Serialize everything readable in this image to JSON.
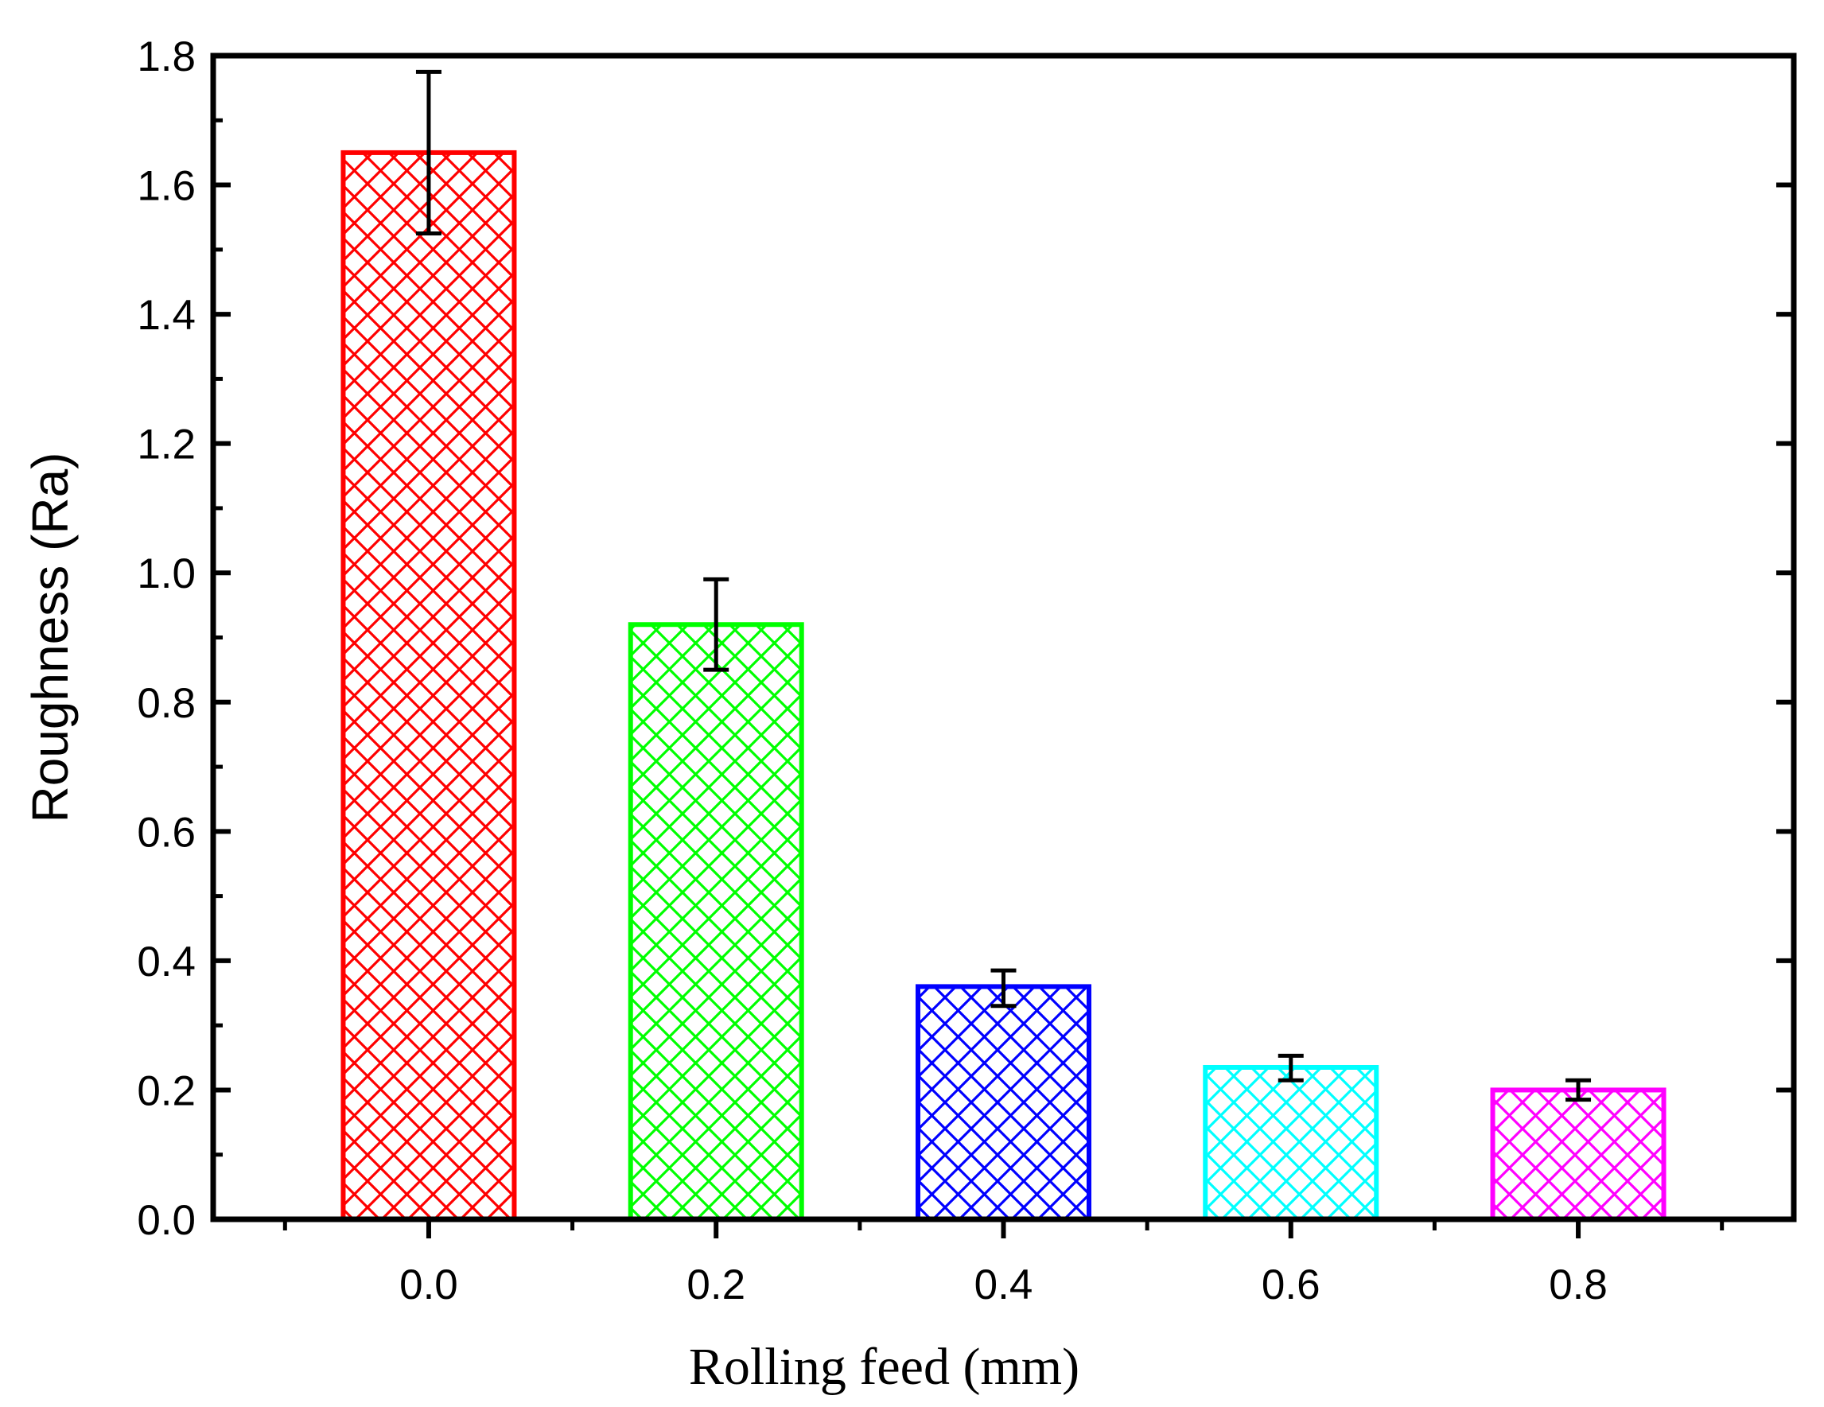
{
  "chart_data": {
    "type": "bar",
    "title": "",
    "xlabel": "Rolling feed (mm)",
    "ylabel": "Roughness (Ra)",
    "categories": [
      "0.0",
      "0.2",
      "0.4",
      "0.6",
      "0.8"
    ],
    "values": [
      1.65,
      0.92,
      0.36,
      0.235,
      0.2
    ],
    "error_low": [
      1.525,
      0.85,
      0.33,
      0.215,
      0.185
    ],
    "error_high": [
      1.775,
      0.99,
      0.385,
      0.253,
      0.215
    ],
    "colors": [
      "#ff0000",
      "#00ff00",
      "#0000ff",
      "#00ffff",
      "#ff00ff"
    ],
    "fill_pattern": "crosshatch",
    "ylim": [
      0,
      1.8
    ],
    "yticks": [
      "0.0",
      "0.2",
      "0.4",
      "0.6",
      "0.8",
      "1.0",
      "1.2",
      "1.4",
      "1.6",
      "1.8"
    ],
    "grid": false,
    "legend": "none"
  }
}
